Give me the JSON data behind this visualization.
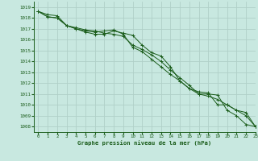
{
  "title": "Graphe pression niveau de la mer (hPa)",
  "bg_color": "#c8e8e0",
  "grid_color": "#b0d0c8",
  "line_color": "#1a5c1a",
  "xlim": [
    -0.5,
    23
  ],
  "ylim": [
    1007.5,
    1019.5
  ],
  "yticks": [
    1008,
    1009,
    1010,
    1011,
    1012,
    1013,
    1014,
    1015,
    1016,
    1017,
    1018,
    1019
  ],
  "xticks": [
    0,
    1,
    2,
    3,
    4,
    5,
    6,
    7,
    8,
    9,
    10,
    11,
    12,
    13,
    14,
    15,
    16,
    17,
    18,
    19,
    20,
    21,
    22,
    23
  ],
  "series": [
    [
      1018.6,
      1018.3,
      1018.2,
      1017.3,
      1017.1,
      1016.9,
      1016.8,
      1016.6,
      1016.5,
      1016.3,
      1015.5,
      1015.1,
      1014.6,
      1014.0,
      1013.2,
      1012.5,
      1011.8,
      1011.0,
      1011.0,
      1010.9,
      1009.5,
      1009.0,
      1008.2,
      1008.0
    ],
    [
      1018.6,
      1018.1,
      1018.0,
      1017.3,
      1017.0,
      1016.7,
      1016.5,
      1016.5,
      1016.8,
      1016.6,
      1016.4,
      1015.5,
      1014.8,
      1014.5,
      1013.5,
      1012.2,
      1011.5,
      1011.0,
      1010.8,
      1010.5,
      1010.0,
      1009.5,
      1009.0,
      1008.0
    ],
    [
      1018.6,
      1018.1,
      1018.0,
      1017.3,
      1017.0,
      1016.8,
      1016.7,
      1016.8,
      1016.9,
      1016.5,
      1015.3,
      1014.9,
      1014.2,
      1013.5,
      1012.8,
      1012.2,
      1011.5,
      1011.2,
      1011.1,
      1010.0,
      1010.0,
      1009.5,
      1009.3,
      1008.0
    ]
  ]
}
